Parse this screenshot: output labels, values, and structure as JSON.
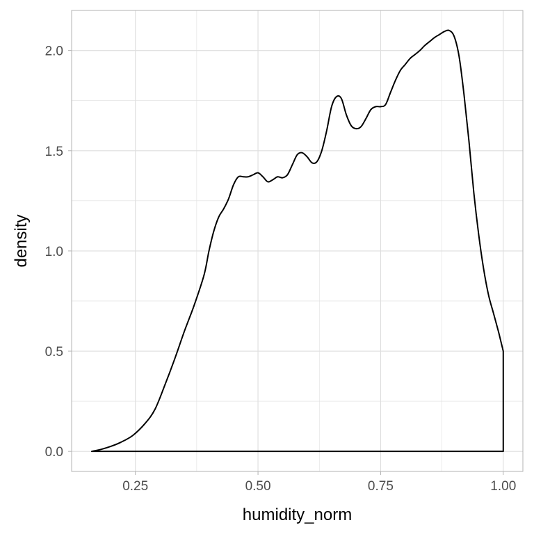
{
  "chart_data": {
    "type": "area",
    "xlabel": "humidity_norm",
    "ylabel": "density",
    "xlim": [
      0.12,
      1.04
    ],
    "ylim": [
      -0.1,
      2.2
    ],
    "x_ticks": [
      0.25,
      0.5,
      0.75,
      1.0
    ],
    "x_tick_labels": [
      "0.25",
      "0.50",
      "0.75",
      "1.00"
    ],
    "y_ticks": [
      0.0,
      0.5,
      1.0,
      1.5,
      2.0
    ],
    "y_tick_labels": [
      "0.0",
      "0.5",
      "1.0",
      "1.5",
      "2.0"
    ],
    "grid": true,
    "theme": "light",
    "colors": {
      "line": "#000000",
      "fill": "none",
      "grid": "#dedede",
      "border": "#b3b3b3"
    },
    "series": [
      {
        "x": [
          0.161,
          0.18,
          0.2,
          0.22,
          0.245,
          0.27,
          0.29,
          0.31,
          0.33,
          0.35,
          0.37,
          0.39,
          0.4,
          0.41,
          0.42,
          0.43,
          0.44,
          0.45,
          0.46,
          0.47,
          0.48,
          0.49,
          0.5,
          0.51,
          0.52,
          0.53,
          0.54,
          0.55,
          0.56,
          0.57,
          0.58,
          0.59,
          0.6,
          0.61,
          0.62,
          0.63,
          0.64,
          0.65,
          0.66,
          0.67,
          0.68,
          0.69,
          0.7,
          0.71,
          0.72,
          0.73,
          0.74,
          0.75,
          0.76,
          0.77,
          0.78,
          0.79,
          0.8,
          0.81,
          0.82,
          0.83,
          0.84,
          0.85,
          0.86,
          0.87,
          0.88,
          0.89,
          0.9,
          0.91,
          0.92,
          0.93,
          0.94,
          0.95,
          0.96,
          0.97,
          0.98,
          0.99,
          0.995,
          1.0
        ],
        "y": [
          0.0,
          0.01,
          0.025,
          0.045,
          0.08,
          0.14,
          0.21,
          0.33,
          0.46,
          0.6,
          0.73,
          0.88,
          1.0,
          1.1,
          1.17,
          1.21,
          1.26,
          1.33,
          1.37,
          1.37,
          1.37,
          1.38,
          1.39,
          1.37,
          1.345,
          1.355,
          1.37,
          1.365,
          1.38,
          1.43,
          1.48,
          1.49,
          1.47,
          1.44,
          1.445,
          1.5,
          1.6,
          1.72,
          1.77,
          1.76,
          1.68,
          1.625,
          1.61,
          1.62,
          1.66,
          1.705,
          1.72,
          1.72,
          1.73,
          1.79,
          1.85,
          1.9,
          1.93,
          1.96,
          1.98,
          2.0,
          2.025,
          2.045,
          2.065,
          2.08,
          2.095,
          2.1,
          2.07,
          1.97,
          1.78,
          1.55,
          1.29,
          1.08,
          0.91,
          0.78,
          0.69,
          0.6,
          0.55,
          0.5
        ]
      }
    ]
  }
}
